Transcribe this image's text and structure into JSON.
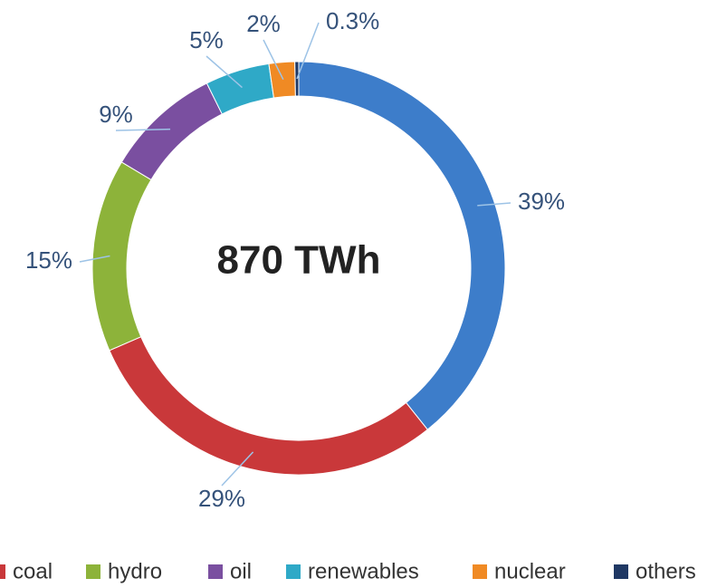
{
  "chart_data": {
    "type": "donut",
    "center_label": "870 TWh",
    "categories": [
      null,
      "coal",
      "hydro",
      "oil",
      "renewables",
      "nuclear",
      "others"
    ],
    "values": [
      39,
      29,
      15,
      9,
      5,
      2,
      0.3
    ],
    "value_labels": [
      "39%",
      "29%",
      "15%",
      "9%",
      "5%",
      "2%",
      "0.3%"
    ],
    "colors": [
      "#3d7dca",
      "#c9383a",
      "#8db33a",
      "#7a4fa0",
      "#2fa9c7",
      "#f08a24",
      "#1f3864"
    ],
    "legend": "bottom"
  }
}
